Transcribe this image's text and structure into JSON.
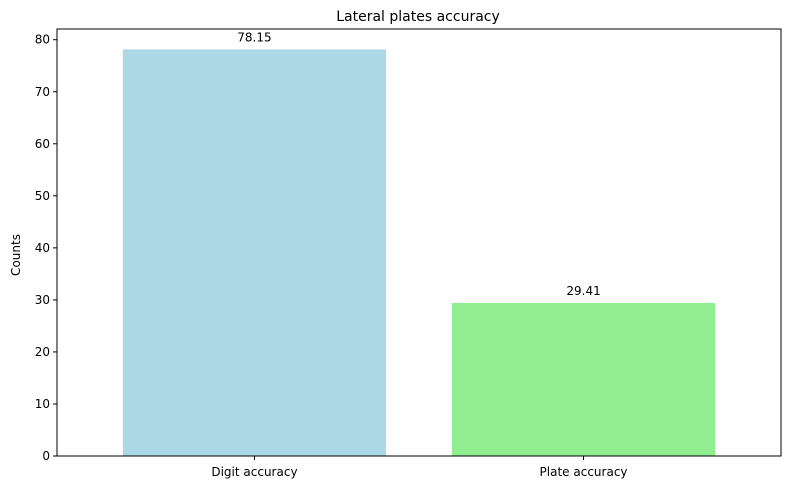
{
  "chart_data": {
    "type": "bar",
    "title": "Lateral plates accuracy",
    "xlabel": "",
    "ylabel": "Counts",
    "categories": [
      "Digit accuracy",
      "Plate accuracy"
    ],
    "values": [
      78.15,
      29.41
    ],
    "value_labels": [
      "78.15",
      "29.41"
    ],
    "colors": [
      "#add8e6",
      "#90ee90"
    ],
    "ylim": [
      0,
      82.06
    ],
    "yticks": [
      0,
      10,
      20,
      30,
      40,
      50,
      60,
      70,
      80
    ],
    "grid": false,
    "legend": "none"
  }
}
